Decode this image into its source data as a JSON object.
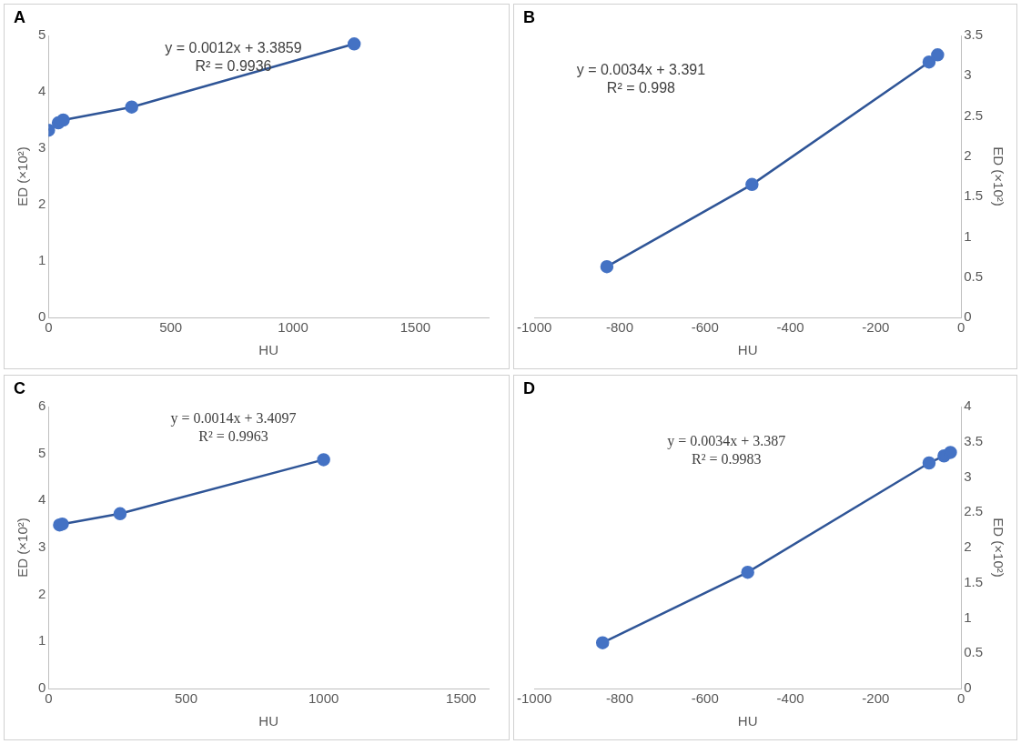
{
  "chart_data": [
    {
      "type": "scatter",
      "title": "A",
      "x_label": "HU",
      "y_label": "ED (×10²)",
      "x": [
        0,
        40,
        60,
        340,
        1250
      ],
      "values": [
        3.32,
        3.45,
        3.5,
        3.73,
        4.85
      ],
      "xlim": [
        0,
        1800
      ],
      "xticks": [
        0,
        500,
        1000,
        1500
      ],
      "ylim": [
        0,
        5
      ],
      "yticks": [
        0,
        1,
        2,
        3,
        4,
        5
      ],
      "annotations": [
        "y = 0.0012x + 3.3859",
        "R² = 0.9936"
      ],
      "color": "#4472c4",
      "line_style": "solid",
      "marker": "circle",
      "grid": false
    },
    {
      "type": "scatter",
      "title": "B",
      "x_label": "HU",
      "y_label": "ED (×10²)",
      "x": [
        -830,
        -490,
        -75,
        -55
      ],
      "values": [
        0.63,
        1.65,
        3.17,
        3.26
      ],
      "xlim": [
        -1000,
        0
      ],
      "xticks": [
        -1000,
        -800,
        -600,
        -400,
        -200,
        0
      ],
      "ylim": [
        0,
        3.5
      ],
      "yticks": [
        0,
        0.5,
        1,
        1.5,
        2,
        2.5,
        3,
        3.5
      ],
      "annotations": [
        "y = 0.0034x + 3.391",
        "R² = 0.998"
      ],
      "color": "#4472c4",
      "line_style": "solid",
      "marker": "circle",
      "grid": false
    },
    {
      "type": "scatter",
      "title": "C",
      "x_label": "HU",
      "y_label": "ED (×10²)",
      "x": [
        40,
        50,
        260,
        1000
      ],
      "values": [
        3.48,
        3.5,
        3.72,
        4.87
      ],
      "xlim": [
        0,
        1600
      ],
      "xticks": [
        0,
        500,
        1000,
        1500
      ],
      "ylim": [
        0,
        6
      ],
      "yticks": [
        0,
        1,
        2,
        3,
        4,
        5,
        6
      ],
      "annotations": [
        "y = 0.0014x + 3.4097",
        "R² = 0.9963"
      ],
      "color": "#4472c4",
      "line_style": "solid",
      "marker": "circle",
      "grid": false
    },
    {
      "type": "scatter",
      "title": "D",
      "x_label": "HU",
      "y_label": "ED (×10²)",
      "x": [
        -840,
        -500,
        -75,
        -40,
        -25
      ],
      "values": [
        0.65,
        1.65,
        3.2,
        3.3,
        3.35
      ],
      "xlim": [
        -1000,
        0
      ],
      "xticks": [
        -1000,
        -800,
        -600,
        -400,
        -200,
        0
      ],
      "ylim": [
        0,
        4
      ],
      "yticks": [
        0,
        0.5,
        1,
        1.5,
        2,
        2.5,
        3,
        3.5,
        4
      ],
      "annotations": [
        "y = 0.0034x + 3.387",
        "R² = 0.9983"
      ],
      "color": "#4472c4",
      "line_style": "solid",
      "marker": "circle",
      "grid": false
    }
  ]
}
